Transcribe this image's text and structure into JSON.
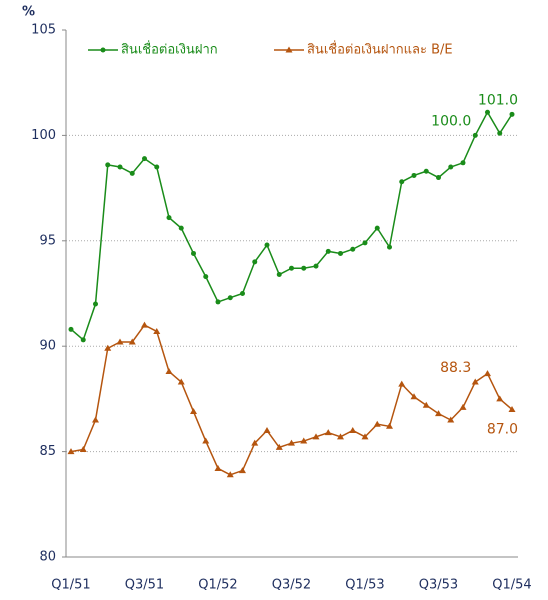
{
  "chart_data": {
    "type": "line",
    "y_label": "%",
    "categories": [
      "Q1/51",
      null,
      null,
      null,
      null,
      null,
      "Q3/51",
      null,
      null,
      null,
      null,
      null,
      "Q1/52",
      null,
      null,
      null,
      null,
      null,
      "Q3/52",
      null,
      null,
      null,
      null,
      null,
      "Q1/53",
      null,
      null,
      null,
      null,
      null,
      "Q3/53",
      null,
      null,
      null,
      null,
      null,
      "Q1/54"
    ],
    "series": [
      {
        "name": "สินเชื่อต่อเงินฝาก",
        "color": "#1a8c1a",
        "marker": "circle",
        "values": [
          90.8,
          90.3,
          92.0,
          98.6,
          98.5,
          98.2,
          98.9,
          98.5,
          96.1,
          95.6,
          94.4,
          93.3,
          92.1,
          92.3,
          92.5,
          94.0,
          94.8,
          93.4,
          93.7,
          93.7,
          93.8,
          94.5,
          94.4,
          94.6,
          94.9,
          95.6,
          94.7,
          97.8,
          98.1,
          98.3,
          98.0,
          98.5,
          98.7,
          100.0,
          101.1,
          100.1,
          101.0
        ],
        "value_labels": [
          null,
          null,
          null,
          null,
          null,
          null,
          null,
          null,
          null,
          null,
          null,
          null,
          null,
          null,
          null,
          null,
          null,
          null,
          null,
          null,
          null,
          null,
          null,
          null,
          null,
          null,
          null,
          null,
          null,
          null,
          null,
          null,
          null,
          "100.0",
          null,
          null,
          "101.0"
        ]
      },
      {
        "name": "สินเชื่อต่อเงินฝากและ B/E",
        "color": "#b5550f",
        "marker": "triangle",
        "values": [
          85.0,
          85.1,
          86.5,
          89.9,
          90.2,
          90.2,
          91.0,
          90.7,
          88.8,
          88.3,
          86.9,
          85.5,
          84.2,
          83.9,
          84.1,
          85.4,
          86.0,
          85.2,
          85.4,
          85.5,
          85.7,
          85.9,
          85.7,
          86.0,
          85.7,
          86.3,
          86.2,
          88.2,
          87.6,
          87.2,
          86.8,
          86.5,
          87.1,
          88.3,
          88.7,
          87.5,
          87.0
        ],
        "value_labels": [
          null,
          null,
          null,
          null,
          null,
          null,
          null,
          null,
          null,
          null,
          null,
          null,
          null,
          null,
          null,
          null,
          null,
          null,
          null,
          null,
          null,
          null,
          null,
          null,
          null,
          null,
          null,
          null,
          null,
          null,
          null,
          null,
          null,
          "88.3",
          null,
          null,
          "87.0"
        ]
      }
    ],
    "ylim": [
      80,
      105
    ],
    "yticks": [
      80,
      85,
      90,
      95,
      100,
      105
    ],
    "grid": true,
    "legend": "top"
  }
}
